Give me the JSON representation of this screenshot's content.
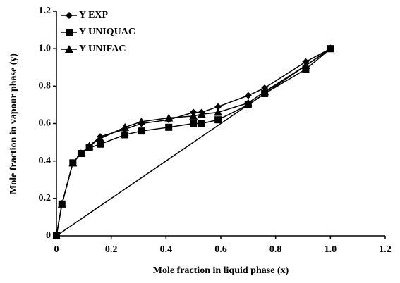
{
  "chart_data": {
    "type": "line",
    "xlabel": "Mole fraction in liquid phase (x)",
    "ylabel": "Mole fraction in vapour phase (y)",
    "x": [
      0,
      0.02,
      0.06,
      0.09,
      0.12,
      0.16,
      0.25,
      0.31,
      0.41,
      0.5,
      0.53,
      0.59,
      0.7,
      0.76,
      0.91,
      1.0
    ],
    "series": [
      {
        "name": "Y EXP",
        "color": "#000000",
        "marker": "diamond",
        "values": [
          0,
          0.17,
          0.39,
          0.44,
          0.48,
          0.53,
          0.57,
          0.6,
          0.62,
          0.66,
          0.66,
          0.69,
          0.75,
          0.79,
          0.93,
          1.0
        ]
      },
      {
        "name": "Y UNIQUAC",
        "color": "#000000",
        "marker": "square",
        "values": [
          0,
          0.17,
          0.39,
          0.44,
          0.47,
          0.49,
          0.54,
          0.56,
          0.58,
          0.6,
          0.6,
          0.62,
          0.7,
          0.76,
          0.89,
          1.0
        ]
      },
      {
        "name": "Y UNIFAC",
        "color": "#000000",
        "marker": "triangle",
        "values": [
          0,
          0.17,
          0.39,
          0.44,
          0.48,
          0.52,
          0.58,
          0.61,
          0.63,
          0.64,
          0.65,
          0.66,
          0.71,
          0.77,
          0.91,
          1.0
        ]
      }
    ],
    "reference_line": {
      "x": [
        0,
        1
      ],
      "y": [
        0,
        1
      ]
    },
    "xlim": [
      0,
      1.2
    ],
    "xticks": [
      0,
      0.2,
      0.4,
      0.6,
      0.8,
      {
        "value": 1,
        "label": "1.0"
      },
      1.2
    ],
    "ylim": [
      0,
      1.2
    ],
    "yticks": [
      0,
      0.2,
      0.4,
      0.6,
      0.8,
      {
        "value": 1,
        "label": "1.0"
      },
      1.2
    ],
    "legend": "upper left"
  }
}
